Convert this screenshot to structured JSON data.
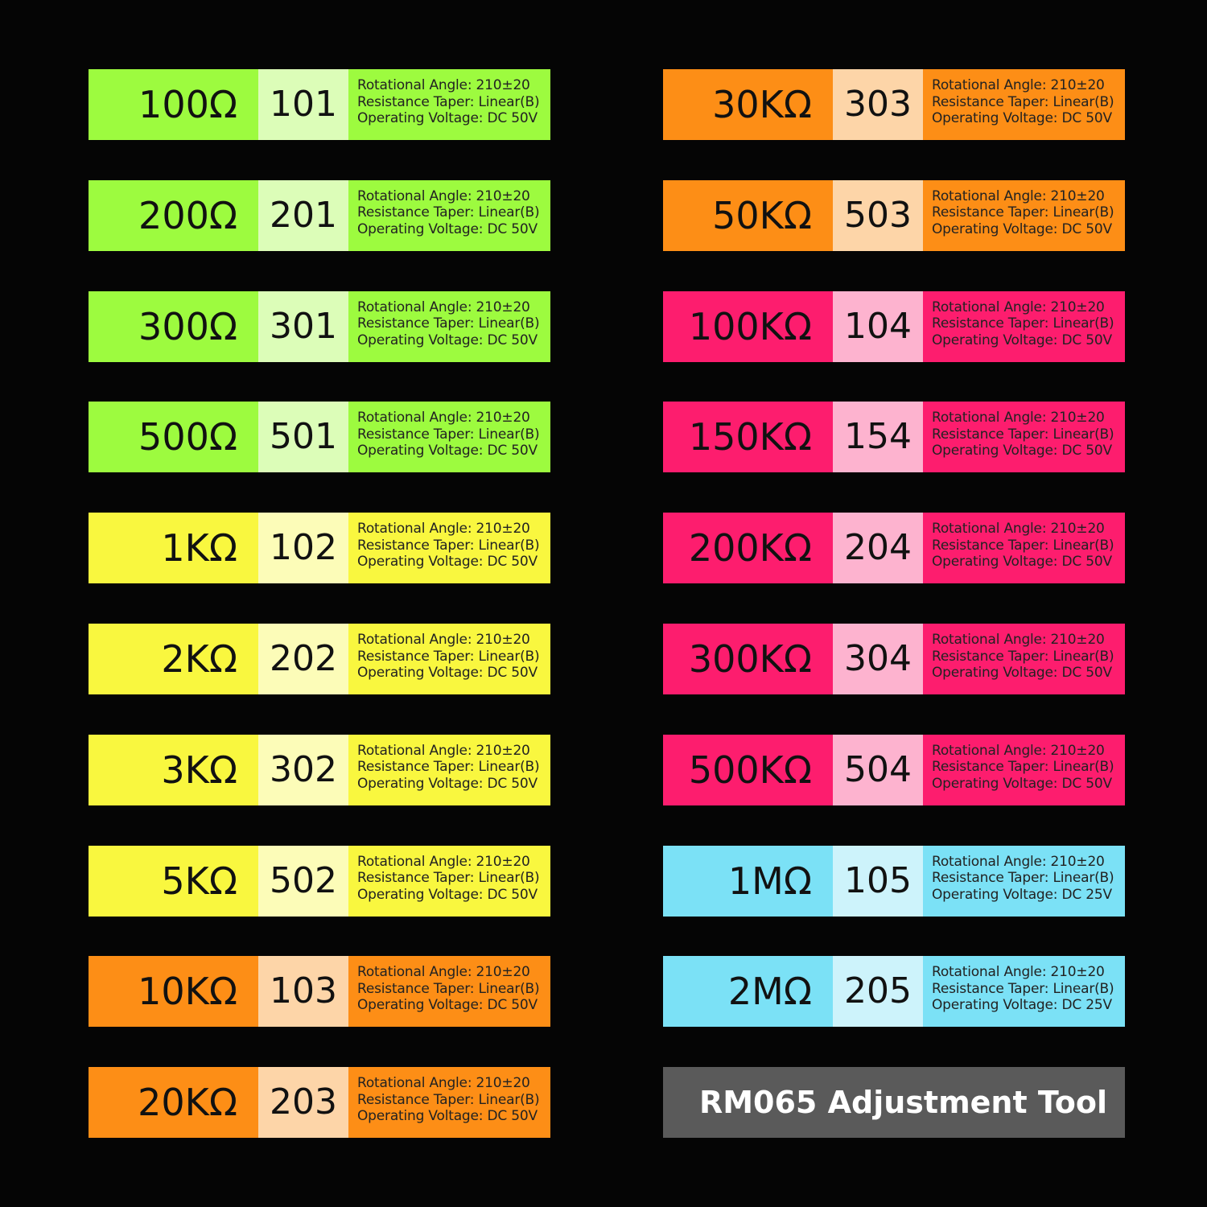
{
  "spec_labels": {
    "angle": "Rotational Angle: 210±20",
    "taper": "Resistance Taper: Linear(B)",
    "voltage_50": "Operating Voltage: DC 50V",
    "voltage_25": "Operating Voltage: DC 25V"
  },
  "colors": {
    "green": {
      "main": "#9dfb3f",
      "light": "#dcfdb8"
    },
    "yellow": {
      "main": "#f9f73f",
      "light": "#fcfcb8"
    },
    "orange": {
      "main": "#fd8e16",
      "light": "#fdd5a8"
    },
    "pink": {
      "main": "#fd1d6e",
      "light": "#fdb3cf"
    },
    "cyan": {
      "main": "#7be1f6",
      "light": "#cdf3fb"
    }
  },
  "left_column": [
    {
      "value": "100Ω",
      "code": "101",
      "color": "green",
      "voltage": "Operating Voltage: DC 50V"
    },
    {
      "value": "200Ω",
      "code": "201",
      "color": "green",
      "voltage": "Operating Voltage: DC 50V"
    },
    {
      "value": "300Ω",
      "code": "301",
      "color": "green",
      "voltage": "Operating Voltage: DC 50V"
    },
    {
      "value": "500Ω",
      "code": "501",
      "color": "green",
      "voltage": "Operating Voltage: DC 50V"
    },
    {
      "value": "1KΩ",
      "code": "102",
      "color": "yellow",
      "voltage": "Operating Voltage: DC 50V"
    },
    {
      "value": "2KΩ",
      "code": "202",
      "color": "yellow",
      "voltage": "Operating Voltage: DC 50V"
    },
    {
      "value": "3KΩ",
      "code": "302",
      "color": "yellow",
      "voltage": "Operating Voltage: DC 50V"
    },
    {
      "value": "5KΩ",
      "code": "502",
      "color": "yellow",
      "voltage": "Operating Voltage: DC 50V"
    },
    {
      "value": "10KΩ",
      "code": "103",
      "color": "orange",
      "voltage": "Operating Voltage: DC 50V"
    },
    {
      "value": "20KΩ",
      "code": "203",
      "color": "orange",
      "voltage": "Operating Voltage: DC 50V"
    }
  ],
  "right_column": [
    {
      "value": "30KΩ",
      "code": "303",
      "color": "orange",
      "voltage": "Operating Voltage: DC 50V"
    },
    {
      "value": "50KΩ",
      "code": "503",
      "color": "orange",
      "voltage": "Operating Voltage: DC 50V"
    },
    {
      "value": "100KΩ",
      "code": "104",
      "color": "pink",
      "voltage": "Operating Voltage: DC 50V"
    },
    {
      "value": "150KΩ",
      "code": "154",
      "color": "pink",
      "voltage": "Operating Voltage: DC 50V"
    },
    {
      "value": "200KΩ",
      "code": "204",
      "color": "pink",
      "voltage": "Operating Voltage: DC 50V"
    },
    {
      "value": "300KΩ",
      "code": "304",
      "color": "pink",
      "voltage": "Operating Voltage: DC 50V"
    },
    {
      "value": "500KΩ",
      "code": "504",
      "color": "pink",
      "voltage": "Operating Voltage: DC 50V"
    },
    {
      "value": "1MΩ",
      "code": "105",
      "color": "cyan",
      "voltage": "Operating Voltage: DC 25V"
    },
    {
      "value": "2MΩ",
      "code": "205",
      "color": "cyan",
      "voltage": "Operating Voltage: DC 25V"
    }
  ],
  "tool_label": "RM065 Adjustment Tool"
}
